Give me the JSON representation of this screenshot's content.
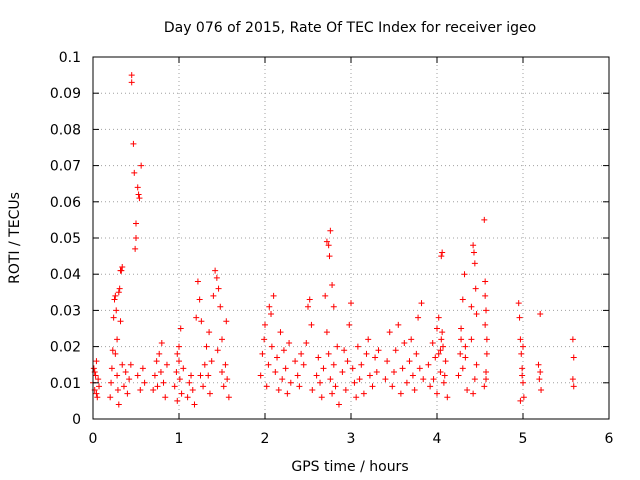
{
  "chart_data": {
    "type": "scatter",
    "title": "Day 076 of 2015, Rate Of TEC Index for receiver igeo",
    "xlabel": "GPS time / hours",
    "ylabel": "ROTI / TECUs",
    "xlim": [
      0,
      6
    ],
    "ylim": [
      0,
      0.1
    ],
    "grid": true,
    "marker": "+",
    "color": "#ff0000",
    "x_ticks": [
      0,
      1,
      2,
      3,
      4,
      5,
      6
    ],
    "x_tick_labels": [
      "0",
      "1",
      "2",
      "3",
      "4",
      "5",
      "6"
    ],
    "y_ticks": [
      0,
      0.01,
      0.02,
      0.03,
      0.04,
      0.05,
      0.06,
      0.07,
      0.08,
      0.09,
      0.1
    ],
    "y_tick_labels": [
      "0",
      "0.01",
      "0.02",
      "0.03",
      "0.04",
      "0.05",
      "0.06",
      "0.07",
      "0.08",
      "0.09",
      "0.1"
    ],
    "series": [
      {
        "name": "ROTI",
        "points": [
          [
            0.0,
            0.01
          ],
          [
            0.01,
            0.014
          ],
          [
            0.02,
            0.008
          ],
          [
            0.03,
            0.012
          ],
          [
            0.04,
            0.016
          ],
          [
            0.05,
            0.006
          ],
          [
            0.06,
            0.011
          ],
          [
            0.07,
            0.009
          ],
          [
            0.02,
            0.013
          ],
          [
            0.04,
            0.007
          ],
          [
            0.2,
            0.006
          ],
          [
            0.21,
            0.01
          ],
          [
            0.22,
            0.014
          ],
          [
            0.23,
            0.019
          ],
          [
            0.24,
            0.028
          ],
          [
            0.25,
            0.033
          ],
          [
            0.26,
            0.034
          ],
          [
            0.27,
            0.03
          ],
          [
            0.28,
            0.012
          ],
          [
            0.29,
            0.008
          ],
          [
            0.3,
            0.035
          ],
          [
            0.31,
            0.036
          ],
          [
            0.32,
            0.041
          ],
          [
            0.33,
            0.041
          ],
          [
            0.34,
            0.042
          ],
          [
            0.32,
            0.027
          ],
          [
            0.34,
            0.015
          ],
          [
            0.3,
            0.004
          ],
          [
            0.28,
            0.022
          ],
          [
            0.26,
            0.018
          ],
          [
            0.36,
            0.009
          ],
          [
            0.38,
            0.013
          ],
          [
            0.4,
            0.007
          ],
          [
            0.42,
            0.011
          ],
          [
            0.44,
            0.015
          ],
          [
            0.45,
            0.095
          ],
          [
            0.45,
            0.093
          ],
          [
            0.47,
            0.076
          ],
          [
            0.48,
            0.068
          ],
          [
            0.5,
            0.054
          ],
          [
            0.5,
            0.05
          ],
          [
            0.49,
            0.047
          ],
          [
            0.52,
            0.064
          ],
          [
            0.53,
            0.062
          ],
          [
            0.54,
            0.061
          ],
          [
            0.56,
            0.07
          ],
          [
            0.52,
            0.012
          ],
          [
            0.55,
            0.008
          ],
          [
            0.58,
            0.014
          ],
          [
            0.6,
            0.01
          ],
          [
            0.7,
            0.008
          ],
          [
            0.72,
            0.012
          ],
          [
            0.74,
            0.016
          ],
          [
            0.75,
            0.009
          ],
          [
            0.77,
            0.018
          ],
          [
            0.79,
            0.013
          ],
          [
            0.8,
            0.021
          ],
          [
            0.82,
            0.01
          ],
          [
            0.84,
            0.006
          ],
          [
            0.86,
            0.015
          ],
          [
            0.95,
            0.009
          ],
          [
            0.97,
            0.013
          ],
          [
            0.98,
            0.018
          ],
          [
            1.0,
            0.02
          ],
          [
            1.02,
            0.025
          ],
          [
            1.01,
            0.011
          ],
          [
            1.03,
            0.007
          ],
          [
            1.05,
            0.014
          ],
          [
            1.0,
            0.016
          ],
          [
            0.98,
            0.005
          ],
          [
            1.1,
            0.006
          ],
          [
            1.12,
            0.01
          ],
          [
            1.14,
            0.012
          ],
          [
            1.16,
            0.008
          ],
          [
            1.18,
            0.004
          ],
          [
            1.2,
            0.028
          ],
          [
            1.22,
            0.038
          ],
          [
            1.24,
            0.033
          ],
          [
            1.26,
            0.027
          ],
          [
            1.28,
            0.009
          ],
          [
            1.3,
            0.015
          ],
          [
            1.32,
            0.02
          ],
          [
            1.34,
            0.012
          ],
          [
            1.36,
            0.007
          ],
          [
            1.38,
            0.016
          ],
          [
            1.4,
            0.034
          ],
          [
            1.42,
            0.041
          ],
          [
            1.44,
            0.039
          ],
          [
            1.46,
            0.036
          ],
          [
            1.48,
            0.031
          ],
          [
            1.5,
            0.013
          ],
          [
            1.52,
            0.009
          ],
          [
            1.54,
            0.015
          ],
          [
            1.56,
            0.011
          ],
          [
            1.58,
            0.006
          ],
          [
            1.45,
            0.019
          ],
          [
            1.35,
            0.024
          ],
          [
            1.25,
            0.012
          ],
          [
            1.55,
            0.027
          ],
          [
            1.5,
            0.022
          ],
          [
            1.95,
            0.012
          ],
          [
            1.97,
            0.018
          ],
          [
            1.99,
            0.022
          ],
          [
            2.0,
            0.026
          ],
          [
            2.02,
            0.009
          ],
          [
            2.04,
            0.015
          ],
          [
            2.05,
            0.031
          ],
          [
            2.07,
            0.029
          ],
          [
            2.08,
            0.02
          ],
          [
            2.1,
            0.034
          ],
          [
            2.12,
            0.013
          ],
          [
            2.14,
            0.017
          ],
          [
            2.16,
            0.008
          ],
          [
            2.18,
            0.024
          ],
          [
            2.2,
            0.011
          ],
          [
            2.22,
            0.019
          ],
          [
            2.24,
            0.014
          ],
          [
            2.26,
            0.007
          ],
          [
            2.28,
            0.021
          ],
          [
            2.3,
            0.01
          ],
          [
            2.35,
            0.016
          ],
          [
            2.38,
            0.012
          ],
          [
            2.4,
            0.009
          ],
          [
            2.42,
            0.018
          ],
          [
            2.45,
            0.015
          ],
          [
            2.48,
            0.021
          ],
          [
            2.5,
            0.031
          ],
          [
            2.52,
            0.033
          ],
          [
            2.54,
            0.026
          ],
          [
            2.55,
            0.008
          ],
          [
            2.6,
            0.012
          ],
          [
            2.62,
            0.017
          ],
          [
            2.64,
            0.01
          ],
          [
            2.66,
            0.006
          ],
          [
            2.68,
            0.014
          ],
          [
            2.7,
            0.034
          ],
          [
            2.72,
            0.049
          ],
          [
            2.74,
            0.048
          ],
          [
            2.76,
            0.052
          ],
          [
            2.75,
            0.045
          ],
          [
            2.78,
            0.037
          ],
          [
            2.8,
            0.031
          ],
          [
            2.72,
            0.024
          ],
          [
            2.74,
            0.018
          ],
          [
            2.76,
            0.011
          ],
          [
            2.78,
            0.007
          ],
          [
            2.8,
            0.015
          ],
          [
            2.82,
            0.009
          ],
          [
            2.84,
            0.02
          ],
          [
            2.86,
            0.004
          ],
          [
            2.9,
            0.013
          ],
          [
            2.92,
            0.019
          ],
          [
            2.94,
            0.008
          ],
          [
            2.96,
            0.016
          ],
          [
            2.98,
            0.026
          ],
          [
            3.0,
            0.032
          ],
          [
            3.02,
            0.014
          ],
          [
            3.04,
            0.01
          ],
          [
            3.06,
            0.006
          ],
          [
            3.08,
            0.02
          ],
          [
            3.1,
            0.011
          ],
          [
            3.12,
            0.015
          ],
          [
            3.15,
            0.007
          ],
          [
            3.18,
            0.018
          ],
          [
            3.2,
            0.022
          ],
          [
            3.22,
            0.012
          ],
          [
            3.25,
            0.009
          ],
          [
            3.28,
            0.017
          ],
          [
            3.3,
            0.013
          ],
          [
            3.32,
            0.019
          ],
          [
            3.4,
            0.011
          ],
          [
            3.42,
            0.016
          ],
          [
            3.45,
            0.024
          ],
          [
            3.48,
            0.009
          ],
          [
            3.5,
            0.013
          ],
          [
            3.52,
            0.019
          ],
          [
            3.55,
            0.026
          ],
          [
            3.58,
            0.007
          ],
          [
            3.6,
            0.014
          ],
          [
            3.62,
            0.021
          ],
          [
            3.65,
            0.01
          ],
          [
            3.68,
            0.016
          ],
          [
            3.7,
            0.022
          ],
          [
            3.72,
            0.012
          ],
          [
            3.74,
            0.008
          ],
          [
            3.76,
            0.018
          ],
          [
            3.78,
            0.028
          ],
          [
            3.8,
            0.014
          ],
          [
            3.82,
            0.032
          ],
          [
            3.84,
            0.011
          ],
          [
            3.9,
            0.015
          ],
          [
            3.92,
            0.009
          ],
          [
            3.95,
            0.021
          ],
          [
            3.98,
            0.017
          ],
          [
            4.0,
            0.025
          ],
          [
            4.02,
            0.028
          ],
          [
            4.04,
            0.013
          ],
          [
            4.05,
            0.045
          ],
          [
            4.06,
            0.046
          ],
          [
            4.07,
            0.02
          ],
          [
            4.08,
            0.01
          ],
          [
            4.1,
            0.016
          ],
          [
            4.12,
            0.006
          ],
          [
            4.05,
            0.022
          ],
          [
            4.02,
            0.018
          ],
          [
            4.09,
            0.012
          ],
          [
            3.96,
            0.011
          ],
          [
            4.0,
            0.007
          ],
          [
            4.04,
            0.019
          ],
          [
            4.06,
            0.024
          ],
          [
            4.25,
            0.012
          ],
          [
            4.27,
            0.018
          ],
          [
            4.28,
            0.025
          ],
          [
            4.3,
            0.033
          ],
          [
            4.32,
            0.04
          ],
          [
            4.33,
            0.02
          ],
          [
            4.35,
            0.008
          ],
          [
            4.3,
            0.014
          ],
          [
            4.28,
            0.022
          ],
          [
            4.33,
            0.017
          ],
          [
            4.4,
            0.031
          ],
          [
            4.42,
            0.048
          ],
          [
            4.43,
            0.046
          ],
          [
            4.44,
            0.043
          ],
          [
            4.45,
            0.036
          ],
          [
            4.46,
            0.029
          ],
          [
            4.44,
            0.011
          ],
          [
            4.42,
            0.007
          ],
          [
            4.46,
            0.015
          ],
          [
            4.4,
            0.022
          ],
          [
            4.55,
            0.055
          ],
          [
            4.56,
            0.038
          ],
          [
            4.57,
            0.03
          ],
          [
            4.56,
            0.026
          ],
          [
            4.58,
            0.022
          ],
          [
            4.57,
            0.013
          ],
          [
            4.55,
            0.009
          ],
          [
            4.58,
            0.018
          ],
          [
            4.56,
            0.034
          ],
          [
            4.57,
            0.011
          ],
          [
            4.95,
            0.032
          ],
          [
            4.96,
            0.028
          ],
          [
            4.97,
            0.022
          ],
          [
            4.98,
            0.018
          ],
          [
            4.99,
            0.014
          ],
          [
            5.0,
            0.01
          ],
          [
            5.01,
            0.006
          ],
          [
            4.97,
            0.005
          ],
          [
            4.99,
            0.012
          ],
          [
            5.0,
            0.02
          ],
          [
            5.18,
            0.015
          ],
          [
            5.19,
            0.011
          ],
          [
            5.2,
            0.029
          ],
          [
            5.21,
            0.008
          ],
          [
            5.2,
            0.013
          ],
          [
            5.58,
            0.022
          ],
          [
            5.59,
            0.017
          ],
          [
            5.58,
            0.011
          ],
          [
            5.59,
            0.009
          ]
        ]
      }
    ]
  }
}
